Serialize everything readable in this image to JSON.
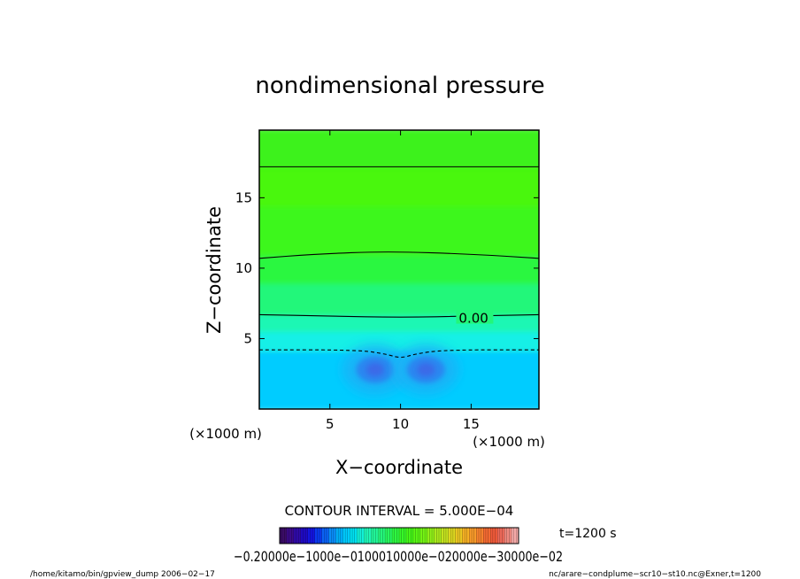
{
  "chart_data": {
    "type": "heatmap",
    "title": "nondimensional pressure",
    "xlabel": "X−coordinate",
    "ylabel": "Z−coordinate",
    "x_unit": "(×1000 m)",
    "y_unit": "(×1000 m)",
    "xlim": [
      0,
      19.8
    ],
    "ylim": [
      0,
      19.8
    ],
    "x_ticks": [
      5,
      10,
      15
    ],
    "y_ticks": [
      5,
      10,
      15
    ],
    "x_tick_labels": [
      "5",
      "10",
      "15"
    ],
    "y_tick_labels": [
      "5",
      "10",
      "15"
    ],
    "value_range": [
      -0.002,
      0.004
    ],
    "field_bands": [
      {
        "z_from": 0,
        "z_to": 4.2,
        "color": "#00ccff"
      },
      {
        "z_from": 4.2,
        "z_to": 5.6,
        "color": "#17f0e6"
      },
      {
        "z_from": 5.6,
        "z_to": 6.8,
        "color": "#1df7b4"
      },
      {
        "z_from": 6.8,
        "z_to": 9.0,
        "color": "#22f77a"
      },
      {
        "z_from": 9.0,
        "z_to": 11.0,
        "color": "#2bf740"
      },
      {
        "z_from": 11.0,
        "z_to": 14.5,
        "color": "#3ef71a"
      },
      {
        "z_from": 14.5,
        "z_to": 17.2,
        "color": "#4af70d"
      },
      {
        "z_from": 17.2,
        "z_to": 19.8,
        "color": "#3cf21a"
      }
    ],
    "low_cells": [
      {
        "x": 8.2,
        "z": 2.8,
        "rx": 1.8,
        "rz": 1.2
      },
      {
        "x": 11.8,
        "z": 2.8,
        "rx": 1.8,
        "rz": 1.2
      }
    ],
    "contours": [
      {
        "points": [
          [
            0,
            17.2
          ],
          [
            19.8,
            17.2
          ]
        ],
        "dashed": false
      },
      {
        "points": [
          [
            0,
            10.7
          ],
          [
            4,
            11.0
          ],
          [
            9,
            11.2
          ],
          [
            15,
            11.0
          ],
          [
            19.8,
            10.7
          ]
        ],
        "dashed": false
      },
      {
        "points": [
          [
            0,
            6.7
          ],
          [
            5,
            6.6
          ],
          [
            10,
            6.5
          ],
          [
            15,
            6.6
          ],
          [
            19.8,
            6.7
          ]
        ],
        "dashed": false,
        "label": "0.00",
        "label_x": 14.0
      },
      {
        "points": [
          [
            0,
            4.2
          ],
          [
            7,
            4.2
          ],
          [
            9,
            3.9
          ],
          [
            10,
            3.6
          ],
          [
            11,
            3.9
          ],
          [
            13,
            4.2
          ],
          [
            19.8,
            4.2
          ]
        ],
        "dashed": true
      }
    ],
    "contour_interval_text": "CONTOUR INTERVAL = 5.000E−04",
    "time_text": "t=1200 s",
    "colorbar": {
      "colors": [
        "#3a0c66",
        "#3b0a8a",
        "#2f0aa8",
        "#1f0ac4",
        "#1414e0",
        "#0a3af0",
        "#0a62f5",
        "#0a8cf8",
        "#00aef8",
        "#00ccff",
        "#00e0f0",
        "#12f0d8",
        "#1ff7b8",
        "#22f79a",
        "#25f77c",
        "#28f75e",
        "#2ef740",
        "#36f728",
        "#44f718",
        "#58f714",
        "#74f514",
        "#90f018",
        "#aaea1c",
        "#c4e31f",
        "#dcd820",
        "#ecc822",
        "#f6b024",
        "#f89a2a",
        "#f7822e",
        "#f46a32",
        "#f05a3a",
        "#ee6a5a",
        "#f08a80",
        "#f5aaa8"
      ],
      "tick_labels_text": "−0.20000e−1000e−0100010000e−020000e−30000e−02"
    },
    "footer_left": "/home/kitamo/bin/gpview_dump  2006−02−17",
    "footer_right": "nc/arare−condplume−scr10−st10.nc@Exner,t=1200"
  }
}
